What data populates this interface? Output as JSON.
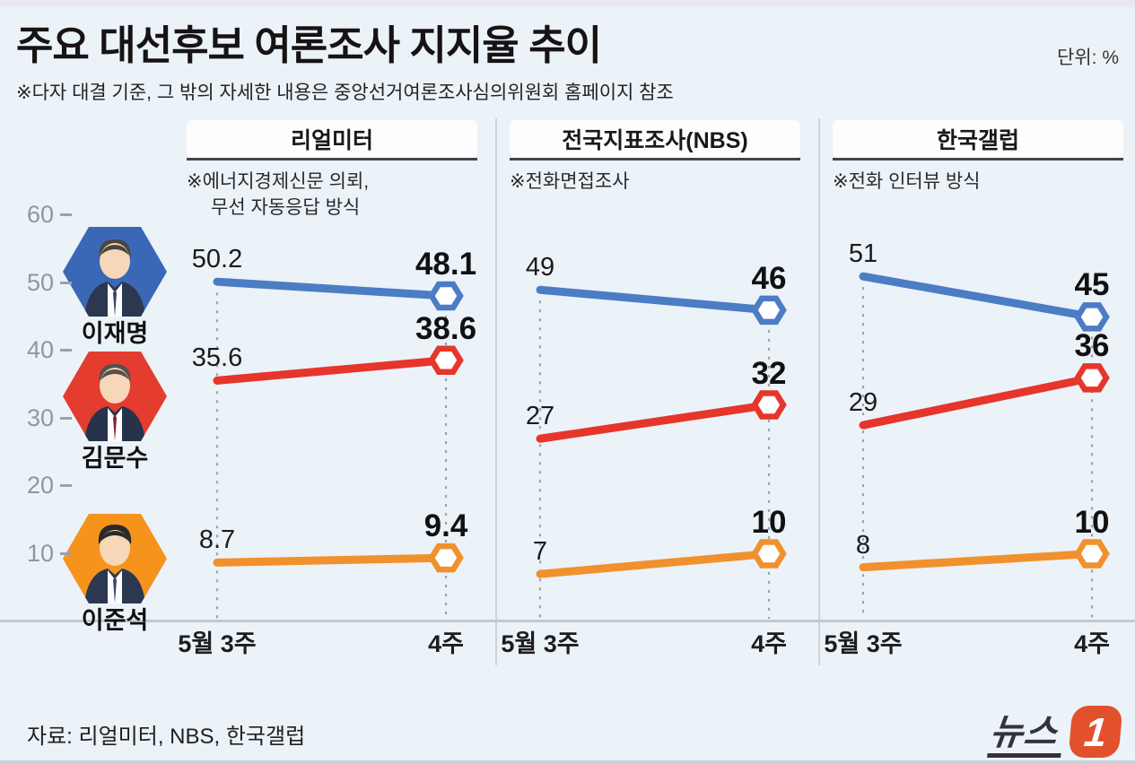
{
  "header": {
    "title": "주요 대선후보 여론조사 지지율 추이",
    "subtitle": "※다자 대결 기준, 그 밖의 자세한 내용은 중앙선거여론조사심의위원회 홈페이지 참조",
    "unit_label": "단위: %"
  },
  "candidates": [
    {
      "name": "이재명",
      "line_color": "#4c7cc4",
      "photo_color": "#3a68b6"
    },
    {
      "name": "김문수",
      "line_color": "#e6352a",
      "photo_color": "#e43c2e"
    },
    {
      "name": "이준석",
      "line_color": "#f0912d",
      "photo_color": "#f5931d"
    }
  ],
  "chart_data": {
    "type": "line",
    "unit": "%",
    "x_categories": [
      "5월 3주",
      "4주"
    ],
    "y_ticks": [
      60,
      50,
      40,
      30,
      20,
      10
    ],
    "ylim": [
      0,
      65
    ],
    "grid": "dashed vertical guides at each x position",
    "panels": [
      {
        "name": "리얼미터",
        "note_lines": [
          "※에너지경제신문 의뢰,",
          "무선 자동응답 방식"
        ],
        "series": [
          {
            "name": "이재명",
            "color": "#4c7cc4",
            "values": [
              50.2,
              48.1
            ]
          },
          {
            "name": "김문수",
            "color": "#e6352a",
            "values": [
              35.6,
              38.6
            ]
          },
          {
            "name": "이준석",
            "color": "#f0912d",
            "values": [
              8.7,
              9.4
            ]
          }
        ]
      },
      {
        "name": "전국지표조사(NBS)",
        "note_lines": [
          "※전화면접조사"
        ],
        "series": [
          {
            "name": "이재명",
            "color": "#4c7cc4",
            "values": [
              49,
              46
            ]
          },
          {
            "name": "김문수",
            "color": "#e6352a",
            "values": [
              27,
              32
            ]
          },
          {
            "name": "이준석",
            "color": "#f0912d",
            "values": [
              7,
              10
            ]
          }
        ]
      },
      {
        "name": "한국갤럽",
        "note_lines": [
          "※전화 인터뷰 방식"
        ],
        "series": [
          {
            "name": "이재명",
            "color": "#4c7cc4",
            "values": [
              51,
              45
            ]
          },
          {
            "name": "김문수",
            "color": "#e6352a",
            "values": [
              29,
              36
            ]
          },
          {
            "name": "이준석",
            "color": "#f0912d",
            "values": [
              8,
              10
            ]
          }
        ]
      }
    ]
  },
  "footer": {
    "source": "자료: 리얼미터, NBS, 한국갤럽",
    "logo_text": "뉴스",
    "logo_number": "1",
    "logo_tile_color": "#e2512b"
  }
}
